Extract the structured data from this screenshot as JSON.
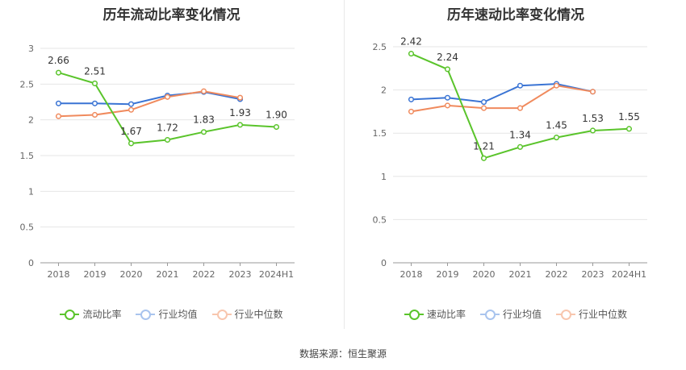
{
  "source": "数据来源：恒生聚源",
  "chart_data": [
    {
      "type": "line",
      "title": "历年流动比率变化情况",
      "categories": [
        "2018",
        "2019",
        "2020",
        "2021",
        "2022",
        "2023",
        "2024H1"
      ],
      "ylim": [
        0,
        3
      ],
      "yticks": [
        "0",
        "0.5",
        "1",
        "1.5",
        "2",
        "2.5",
        "3"
      ],
      "grid": true,
      "legend_position": "bottom",
      "series": [
        {
          "name": "流动比率",
          "color": "#5ac42b",
          "values": [
            2.66,
            2.51,
            1.67,
            1.72,
            1.83,
            1.93,
            1.9
          ],
          "labels": [
            "2.66",
            "2.51",
            "1.67",
            "1.72",
            "1.83",
            "1.93",
            "1.90"
          ]
        },
        {
          "name": "行业均值",
          "color": "#3a74d4",
          "values": [
            2.23,
            2.23,
            2.22,
            2.34,
            2.39,
            2.29,
            null
          ]
        },
        {
          "name": "行业中位数",
          "color": "#f08a5d",
          "values": [
            2.05,
            2.07,
            2.14,
            2.32,
            2.4,
            2.31,
            null
          ]
        }
      ]
    },
    {
      "type": "line",
      "title": "历年速动比率变化情况",
      "categories": [
        "2018",
        "2019",
        "2020",
        "2021",
        "2022",
        "2023",
        "2024H1"
      ],
      "ylim": [
        0,
        2.5
      ],
      "yticks": [
        "0",
        "0.5",
        "1",
        "1.5",
        "2",
        "2.5"
      ],
      "grid": true,
      "legend_position": "bottom",
      "series": [
        {
          "name": "速动比率",
          "color": "#5ac42b",
          "values": [
            2.42,
            2.24,
            1.21,
            1.34,
            1.45,
            1.53,
            1.55
          ],
          "labels": [
            "2.42",
            "2.24",
            "1.21",
            "1.34",
            "1.45",
            "1.53",
            "1.55"
          ]
        },
        {
          "name": "行业均值",
          "color": "#3a74d4",
          "values": [
            1.89,
            1.91,
            1.86,
            2.05,
            2.07,
            1.98,
            null
          ]
        },
        {
          "name": "行业中位数",
          "color": "#f08a5d",
          "values": [
            1.75,
            1.82,
            1.79,
            1.79,
            2.05,
            1.98,
            null
          ]
        }
      ]
    }
  ]
}
